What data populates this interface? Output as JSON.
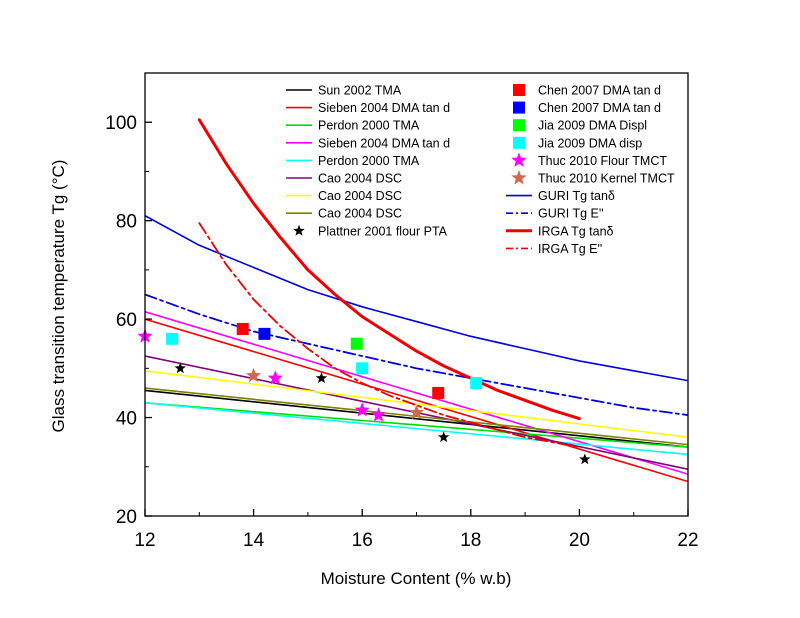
{
  "chart_data": {
    "type": "line",
    "xlabel": "Moisture Content (% w.b)",
    "ylabel": "Glass transition temperature Tg (°C)",
    "xlim": [
      12,
      22
    ],
    "ylim": [
      20,
      110
    ],
    "xticks": [
      12,
      14,
      16,
      18,
      20,
      22
    ],
    "yticks": [
      20,
      40,
      60,
      80,
      100
    ],
    "xtick_labels": [
      "12",
      "14",
      "16",
      "18",
      "20",
      "22"
    ],
    "ytick_labels": [
      "20",
      "40",
      "60",
      "80",
      "100"
    ],
    "grid": false,
    "legend_position": "top-right",
    "series": [
      {
        "name": "Sun 2002 TMA",
        "kind": "line",
        "color": "#000000",
        "dash": "solid",
        "width": 1.6,
        "x": [
          12,
          22
        ],
        "y": [
          45.5,
          34.0
        ]
      },
      {
        "name": "Sieben 2004 DMA tan d",
        "kind": "line",
        "color": "#ff0000",
        "dash": "solid",
        "width": 1.6,
        "x": [
          12,
          22
        ],
        "y": [
          60.0,
          27.0
        ]
      },
      {
        "name": "Perdon 2000 TMA",
        "kind": "line",
        "color": "#00dd00",
        "dash": "solid",
        "width": 1.6,
        "x": [
          12,
          22
        ],
        "y": [
          43.0,
          34.0
        ]
      },
      {
        "name": "Sieben 2004 DMA tan d",
        "kind": "line",
        "color": "#ff00ff",
        "dash": "solid",
        "width": 1.6,
        "x": [
          12,
          22
        ],
        "y": [
          61.5,
          28.5
        ]
      },
      {
        "name": "Perdon 2000 TMA",
        "kind": "line",
        "color": "#00ffff",
        "dash": "solid",
        "width": 1.6,
        "x": [
          12,
          22
        ],
        "y": [
          43.0,
          32.5
        ]
      },
      {
        "name": "Cao 2004 DSC",
        "kind": "line",
        "color": "#800080",
        "dash": "solid",
        "width": 1.6,
        "x": [
          12,
          22
        ],
        "y": [
          52.5,
          29.5
        ]
      },
      {
        "name": "Cao 2004 DSC",
        "kind": "line",
        "color": "#ffff00",
        "dash": "solid",
        "width": 1.6,
        "x": [
          12,
          22
        ],
        "y": [
          49.5,
          36.0
        ]
      },
      {
        "name": "Cao 2004 DSC",
        "kind": "line",
        "color": "#808000",
        "dash": "solid",
        "width": 1.6,
        "x": [
          12,
          22
        ],
        "y": [
          46.0,
          34.5
        ]
      },
      {
        "name": "Plattner 2001 flour PTA",
        "kind": "points",
        "marker": "star",
        "color": "#000000",
        "x": [
          12.65,
          15.25,
          17.5,
          20.1
        ],
        "y": [
          50,
          48,
          36,
          31.5
        ]
      },
      {
        "name": "Chen 2007 DMA tan d",
        "kind": "points",
        "marker": "square",
        "color": "#ff0000",
        "x": [
          13.8,
          17.4
        ],
        "y": [
          58,
          45
        ]
      },
      {
        "name": "Chen 2007 DMA tan d",
        "kind": "points",
        "marker": "square",
        "color": "#0000ff",
        "x": [
          14.2
        ],
        "y": [
          57
        ]
      },
      {
        "name": "Jia 2009 DMA Displ",
        "kind": "points",
        "marker": "square",
        "color": "#00ff00",
        "x": [
          15.9
        ],
        "y": [
          55
        ]
      },
      {
        "name": "Jia 2009 DMA disp",
        "kind": "points",
        "marker": "square",
        "color": "#00ffff",
        "x": [
          12.5,
          16.0,
          18.1
        ],
        "y": [
          56,
          50,
          47
        ]
      },
      {
        "name": "Thuc 2010 Flour TMCT",
        "kind": "points",
        "marker": "star",
        "color": "#ff00ff",
        "x": [
          12.0,
          14.4,
          16.0,
          16.3
        ],
        "y": [
          56.5,
          48,
          41.5,
          40.5
        ]
      },
      {
        "name": "Thuc 2010 Kernel TMCT",
        "kind": "points",
        "marker": "star",
        "color": "#d2694a",
        "x": [
          14.0,
          17.0
        ],
        "y": [
          48.5,
          41
        ]
      },
      {
        "name": "GURI Tg tanδ",
        "kind": "line",
        "color": "#0000dd",
        "dash": "solid",
        "width": 1.6,
        "x": [
          12,
          13,
          14,
          15,
          16,
          17,
          18,
          19,
          20,
          21,
          22
        ],
        "y": [
          81,
          75,
          70.5,
          66,
          62.5,
          59.5,
          56.5,
          54,
          51.5,
          49.5,
          47.5
        ]
      },
      {
        "name": "GURI Tg E''",
        "kind": "line",
        "color": "#0000dd",
        "dash": "dashdot",
        "width": 1.8,
        "x": [
          12,
          13,
          14,
          15,
          16,
          17,
          18,
          19,
          20,
          21,
          22
        ],
        "y": [
          65,
          61,
          57.5,
          55,
          52.5,
          50,
          48,
          46,
          44,
          42,
          40.5
        ]
      },
      {
        "name": "IRGA Tg tanδ",
        "kind": "line",
        "color": "#ee0000",
        "dash": "solid",
        "width": 3,
        "x": [
          13,
          13.5,
          14,
          14.5,
          15,
          15.5,
          16,
          16.5,
          17,
          17.5,
          18,
          18.5,
          19,
          19.5,
          20
        ],
        "y": [
          100.5,
          91.5,
          83.5,
          76.5,
          70,
          65,
          60.5,
          57,
          53.5,
          50.5,
          48,
          45.5,
          43.5,
          41.5,
          39.8
        ]
      },
      {
        "name": "IRGA Tg E''",
        "kind": "line",
        "color": "#ee0000",
        "dash": "dashdot",
        "width": 1.8,
        "x": [
          13,
          13.5,
          14,
          14.5,
          15,
          15.5,
          16,
          16.5,
          17,
          17.5,
          18,
          18.5,
          19,
          19.5,
          20
        ],
        "y": [
          79.5,
          71,
          64,
          58.5,
          54,
          50,
          47,
          44.5,
          42.5,
          40.5,
          39,
          37.5,
          36,
          35,
          34
        ]
      }
    ],
    "legend_left": [
      {
        "label": "Sun 2002 TMA",
        "symbol": "line",
        "color": "#000000"
      },
      {
        "label": "Sieben 2004 DMA tan d",
        "symbol": "line",
        "color": "#ff0000"
      },
      {
        "label": "Perdon 2000 TMA",
        "symbol": "line",
        "color": "#00dd00"
      },
      {
        "label": "Sieben 2004 DMA tan d",
        "symbol": "line",
        "color": "#ff00ff"
      },
      {
        "label": "Perdon 2000 TMA",
        "symbol": "line",
        "color": "#00ffff"
      },
      {
        "label": "Cao 2004 DSC",
        "symbol": "line",
        "color": "#800080"
      },
      {
        "label": "Cao 2004 DSC",
        "symbol": "line",
        "color": "#ffff00"
      },
      {
        "label": "Cao 2004 DSC",
        "symbol": "line",
        "color": "#808000"
      },
      {
        "label": "Plattner  2001 flour  PTA",
        "symbol": "star",
        "color": "#000000"
      }
    ],
    "legend_right": [
      {
        "label": "Chen 2007 DMA tan d",
        "symbol": "square",
        "color": "#ff0000"
      },
      {
        "label": "Chen 2007 DMA tan d",
        "symbol": "square",
        "color": "#0000ff"
      },
      {
        "label": "Jia 2009 DMA Displ",
        "symbol": "square",
        "color": "#00ff00"
      },
      {
        "label": "Jia 2009 DMA disp",
        "symbol": "square",
        "color": "#00ffff"
      },
      {
        "label": "Thuc 2010 Flour TMCT",
        "symbol": "star",
        "color": "#ff00ff"
      },
      {
        "label": "Thuc 2010 Kernel TMCT",
        "symbol": "star",
        "color": "#d2694a"
      },
      {
        "label": "GURI Tg tanδ",
        "symbol": "line",
        "color": "#0000dd"
      },
      {
        "label": "GURI Tg E''",
        "symbol": "dashdot",
        "color": "#0000dd"
      },
      {
        "label": "IRGA Tg tanδ",
        "symbol": "thickline",
        "color": "#ee0000"
      },
      {
        "label": "IRGA Tg E''",
        "symbol": "dashdot",
        "color": "#ee0000"
      }
    ]
  }
}
